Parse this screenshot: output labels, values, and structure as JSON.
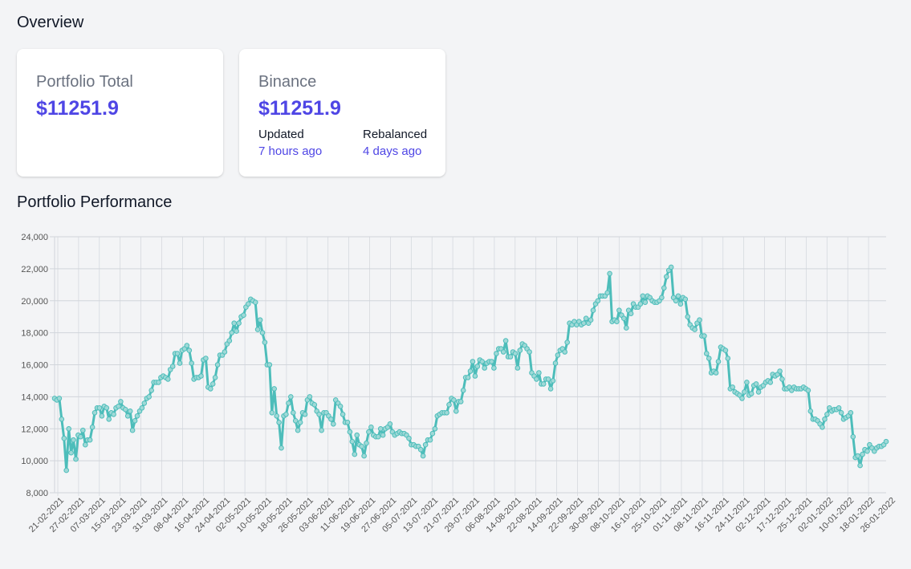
{
  "overview": {
    "title": "Overview",
    "cards": [
      {
        "label": "Portfolio Total",
        "value": "$11251.9"
      },
      {
        "label": "Binance",
        "value": "$11251.9",
        "updated_label": "Updated",
        "updated_value": "7 hours ago",
        "rebalanced_label": "Rebalanced",
        "rebalanced_value": "4 days ago"
      }
    ]
  },
  "performance": {
    "title": "Portfolio Performance"
  },
  "colors": {
    "accent": "#4f46e5",
    "line": "#4dbdba",
    "grid": "#d1d5db"
  },
  "chart_data": {
    "type": "line",
    "title": "",
    "xlabel": "",
    "ylabel": "",
    "ylim": [
      8000,
      24000
    ],
    "yticks": [
      "8,000",
      "10,000",
      "12,000",
      "14,000",
      "16,000",
      "18,000",
      "20,000",
      "22,000",
      "24,000"
    ],
    "grid": true,
    "x_tick_labels": [
      "21-02-2021",
      "27-02-2021",
      "07-03-2021",
      "15-03-2021",
      "23-03-2021",
      "31-03-2021",
      "08-04-2021",
      "16-04-2021",
      "24-04-2021",
      "02-05-2021",
      "10-05-2021",
      "18-05-2021",
      "26-05-2021",
      "03-06-2021",
      "11-06-2021",
      "19-06-2021",
      "27-06-2021",
      "05-07-2021",
      "13-07-2021",
      "21-07-2021",
      "29-07-2021",
      "06-08-2021",
      "14-08-2021",
      "22-08-2021",
      "14-09-2021",
      "22-09-2021",
      "30-09-2021",
      "08-10-2021",
      "16-10-2021",
      "25-10-2021",
      "01-11-2021",
      "08-11-2021",
      "16-11-2021",
      "24-11-2021",
      "02-12-2021",
      "17-12-2021",
      "25-12-2021",
      "02-01-2022",
      "10-01-2022",
      "18-01-2022",
      "26-01-2022"
    ],
    "series": [
      {
        "values": [
          13900,
          13800,
          13900,
          12600,
          11400,
          9400,
          12000,
          10500,
          11300,
          10100,
          11600,
          11500,
          11900,
          11000,
          11300,
          11300,
          12100,
          13000,
          13300,
          13300,
          12800,
          13400,
          13300,
          12600,
          13000,
          12900,
          13300,
          13400,
          13700,
          13300,
          13200,
          12800,
          13100,
          11900,
          12500,
          12800,
          13100,
          13300,
          13600,
          13900,
          14000,
          14400,
          14900,
          14900,
          14900,
          15200,
          15300,
          15200,
          15100,
          15700,
          15900,
          16700,
          16700,
          16100,
          16900,
          17000,
          17200,
          16900,
          16100,
          15100,
          15200,
          15200,
          15300,
          16300,
          16400,
          14600,
          14500,
          14800,
          15200,
          16000,
          16600,
          16600,
          16800,
          17300,
          17500,
          18000,
          18600,
          18100,
          18600,
          19000,
          19100,
          19600,
          19800,
          20100,
          20000,
          19900,
          18200,
          18800,
          18000,
          17400,
          16000,
          16000,
          13000,
          14500,
          12800,
          12400,
          10800,
          12800,
          12900,
          13600,
          14000,
          13000,
          12500,
          11900,
          12400,
          13000,
          12900,
          13800,
          14000,
          13600,
          13500,
          13100,
          12900,
          11900,
          13000,
          13000,
          12800,
          12600,
          12300,
          13800,
          13600,
          13400,
          12900,
          12400,
          12400,
          11800,
          11200,
          10400,
          11600,
          11000,
          10900,
          10300,
          11100,
          11800,
          12100,
          11600,
          11500,
          11500,
          12000,
          11600,
          12000,
          12100,
          12300,
          11800,
          11600,
          11700,
          11800,
          11700,
          11700,
          11600,
          11400,
          11000,
          11000,
          10900,
          10900,
          10700,
          10300,
          11000,
          11300,
          11300,
          11700,
          12000,
          12800,
          12900,
          13000,
          13000,
          13000,
          13500,
          13900,
          13800,
          13100,
          13700,
          13700,
          14400,
          15200,
          15200,
          15600,
          16200,
          15300,
          15900,
          16300,
          16200,
          15800,
          16100,
          16200,
          16200,
          15800,
          16700,
          17000,
          17000,
          16800,
          17500,
          16500,
          16500,
          16800,
          16700,
          15800,
          16900,
          17300,
          17200,
          17000,
          16800,
          15500,
          15300,
          15100,
          15500,
          14800,
          14800,
          15100,
          15100,
          14500,
          15000,
          16100,
          16600,
          16900,
          17000,
          16800,
          17400,
          18600,
          18500,
          18700,
          18500,
          18700,
          18500,
          18600,
          18900,
          18600,
          18800,
          19400,
          19800,
          20000,
          20300,
          20300,
          20300,
          20500,
          21700,
          18700,
          18800,
          18700,
          19400,
          19100,
          18900,
          18300,
          19400,
          19200,
          19800,
          19600,
          19600,
          19800,
          20300,
          19900,
          20300,
          20200,
          20000,
          19900,
          19900,
          20000,
          20200,
          20800,
          21500,
          21900,
          22100,
          20200,
          20000,
          20300,
          19800,
          20200,
          20100,
          19000,
          18500,
          18300,
          18200,
          18600,
          18800,
          17800,
          17800,
          16700,
          16400,
          15500,
          15600,
          15500,
          16200,
          17100,
          17000,
          16900,
          16400,
          14500,
          14600,
          14300,
          14200,
          14100,
          13900,
          14300,
          14900,
          14100,
          14200,
          14700,
          14800,
          14300,
          14600,
          14700,
          14900,
          15000,
          14900,
          15400,
          15300,
          15400,
          15600,
          15100,
          14500,
          14500,
          14600,
          14400,
          14600,
          14500,
          14500,
          14500,
          14600,
          14500,
          14400,
          13100,
          12600,
          12600,
          12500,
          12300,
          12100,
          12600,
          12900,
          13300,
          13100,
          13200,
          13200,
          13300,
          13000,
          12600,
          12700,
          12800,
          13000,
          11500,
          10200,
          10300,
          9700,
          10400,
          10700,
          10600,
          11000,
          10800,
          10600,
          10800,
          10900,
          10900,
          11000,
          11200
        ]
      }
    ]
  }
}
